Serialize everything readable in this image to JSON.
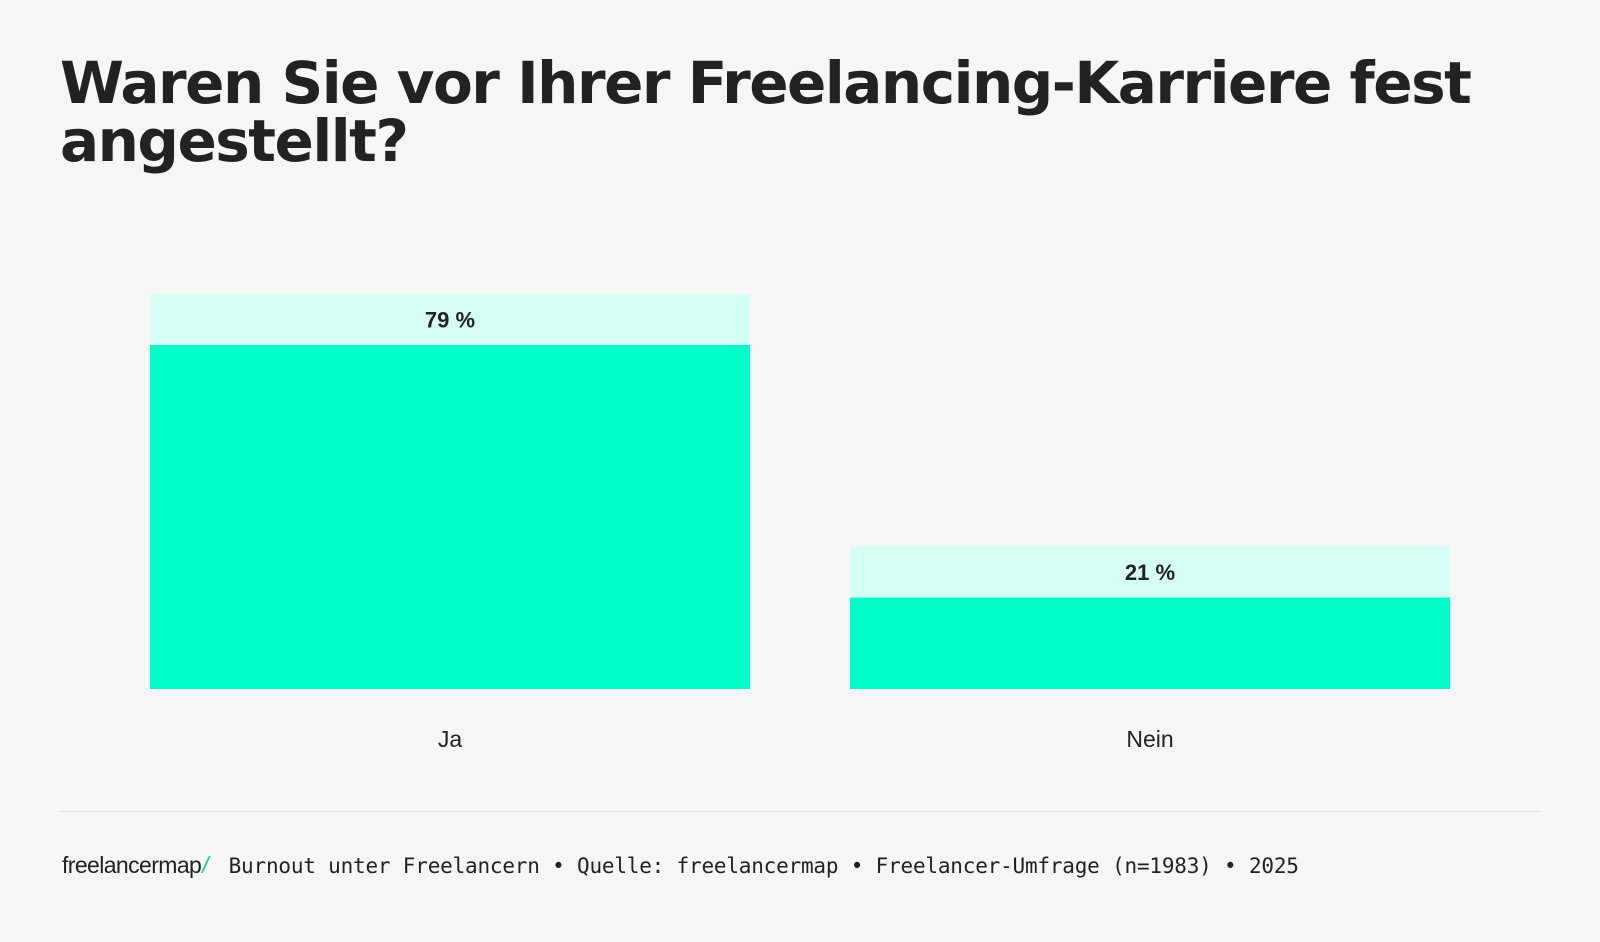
{
  "page": {
    "title": "Waren Sie vor Ihrer Freelancing-Karriere fest angestellt?"
  },
  "footer": {
    "logo_text": "freelancermap",
    "logo_slash": "/",
    "source": "Burnout unter Freelancern • Quelle: freelancermap • Freelancer-Umfrage (n=1983) • 2025"
  },
  "colors": {
    "bar": "#00ffc8",
    "label_box": "#d6fff4",
    "background": "#f6f6f6",
    "text": "#222222"
  },
  "chart_data": {
    "type": "bar",
    "categories": [
      "Ja",
      "Nein"
    ],
    "values": [
      79,
      21
    ],
    "value_labels": [
      "79 %",
      "21 %"
    ],
    "unit": "%",
    "ylim": [
      0,
      79
    ],
    "grid": false,
    "legend": "none"
  }
}
